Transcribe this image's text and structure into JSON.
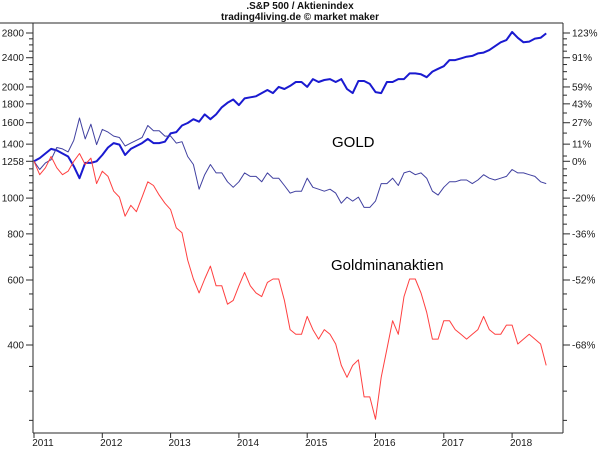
{
  "header": {
    "title_line1": ".S&P 500 / Aktienindex",
    "title_line2": "trading4living.de © market maker"
  },
  "chart_data": {
    "type": "line",
    "title": ".S&P 500 / Aktienindex",
    "subtitle": "trading4living.de © market maker",
    "grid": false,
    "legend": "none (in-plot text annotations)",
    "x_axis": {
      "labels": [
        "2011",
        "2012",
        "2013",
        "2014",
        "2015",
        "2016",
        "2017",
        "2018"
      ],
      "range_years": [
        2010.95,
        2018.75
      ]
    },
    "y_axis": {
      "scale": "log",
      "base_value": 1258,
      "left_title": "index value",
      "right_title": "percent change vs 1258",
      "majors": [
        {
          "value": 2800,
          "left": "2800",
          "right": "123%"
        },
        {
          "value": 2400,
          "left": "2400",
          "right": "91%"
        },
        {
          "value": 2000,
          "left": "2000",
          "right": "59%"
        },
        {
          "value": 1800,
          "left": "1800",
          "right": "43%"
        },
        {
          "value": 1600,
          "left": "1600",
          "right": "27%"
        },
        {
          "value": 1400,
          "left": "1400",
          "right": "11%"
        },
        {
          "value": 1258,
          "left": "1258",
          "right": "0%"
        },
        {
          "value": 1000,
          "left": "1000",
          "right": "-20%"
        },
        {
          "value": 800,
          "left": "800",
          "right": "-36%"
        },
        {
          "value": 600,
          "left": "600",
          "right": "-52%"
        },
        {
          "value": 400,
          "left": "400",
          "right": "-68%"
        }
      ]
    },
    "annotations": [
      {
        "text": "GOLD"
      },
      {
        "text": "Goldminanaktien"
      }
    ],
    "series": [
      {
        "name": ".S&P 500",
        "color": "#1a1ad0",
        "stroke_width": 2,
        "start_year": 2011.0,
        "step_years": 0.083333,
        "pct_change": [
          0,
          2,
          5,
          8,
          7,
          5,
          3,
          -3,
          -10,
          -1,
          -1,
          0,
          4,
          9,
          12,
          11,
          4,
          8,
          10,
          12,
          15,
          12,
          12,
          13,
          19,
          20,
          25,
          27,
          30,
          28,
          34,
          30,
          34,
          40,
          44,
          47,
          42,
          48,
          49,
          50,
          53,
          56,
          53,
          59,
          57,
          60,
          64,
          64,
          59,
          67,
          64,
          66,
          67,
          64,
          67,
          57,
          53,
          65,
          65,
          62,
          54,
          53,
          64,
          64,
          67,
          67,
          73,
          73,
          72,
          69,
          75,
          78,
          81,
          88,
          88,
          90,
          92,
          93,
          96,
          97,
          100,
          105,
          110,
          113,
          124,
          116,
          110,
          111,
          115,
          116,
          122
        ]
      },
      {
        "name": "GOLD",
        "color": "#4040a0",
        "stroke_width": 1,
        "start_year": 2011.0,
        "step_years": 0.083333,
        "pct_change": [
          0,
          -5,
          -1,
          1,
          9,
          8,
          6,
          14,
          31,
          15,
          26,
          11,
          22,
          20,
          17,
          16,
          10,
          12,
          14,
          16,
          25,
          21,
          21,
          17,
          17,
          12,
          13,
          3,
          -2,
          -16,
          -8,
          -2,
          -7,
          -7,
          -12,
          -15,
          -12,
          -7,
          -9,
          -9,
          -12,
          -7,
          -10,
          -10,
          -14,
          -18,
          -17,
          -17,
          -10,
          -15,
          -16,
          -17,
          -16,
          -18,
          -23,
          -20,
          -22,
          -20,
          -25,
          -25,
          -22,
          -13,
          -13,
          -10,
          -14,
          -7,
          -6,
          -8,
          -7,
          -10,
          -17,
          -19,
          -15,
          -12,
          -12,
          -11,
          -11,
          -13,
          -11,
          -8,
          -10,
          -11,
          -10,
          -9,
          -5,
          -7,
          -7,
          -8,
          -9,
          -12,
          -13
        ]
      },
      {
        "name": "Goldminanaktien",
        "color": "#ff4040",
        "stroke_width": 1,
        "start_year": 2011.0,
        "step_years": 0.083333,
        "pct_change": [
          0,
          -8,
          -4,
          3,
          -4,
          -8,
          -6,
          0,
          5,
          -2,
          2,
          -13,
          -6,
          -9,
          -17,
          -20,
          -29,
          -24,
          -27,
          -20,
          -12,
          -14,
          -19,
          -23,
          -26,
          -34,
          -36,
          -46,
          -52,
          -56,
          -52,
          -48,
          -54,
          -54,
          -59,
          -58,
          -54,
          -50,
          -54,
          -56,
          -57,
          -53,
          -52,
          -52,
          -58,
          -65,
          -66,
          -66,
          -62,
          -65,
          -67,
          -65,
          -66,
          -68,
          -72,
          -74,
          -72,
          -71,
          -77,
          -77,
          -80,
          -74,
          -69,
          -63,
          -66,
          -57,
          -52,
          -52,
          -56,
          -61,
          -67,
          -67,
          -63,
          -63,
          -65,
          -66,
          -67,
          -66,
          -65,
          -62,
          -65,
          -66,
          -66,
          -64,
          -64,
          -68,
          -67,
          -66,
          -67,
          -68,
          -72
        ]
      }
    ]
  }
}
